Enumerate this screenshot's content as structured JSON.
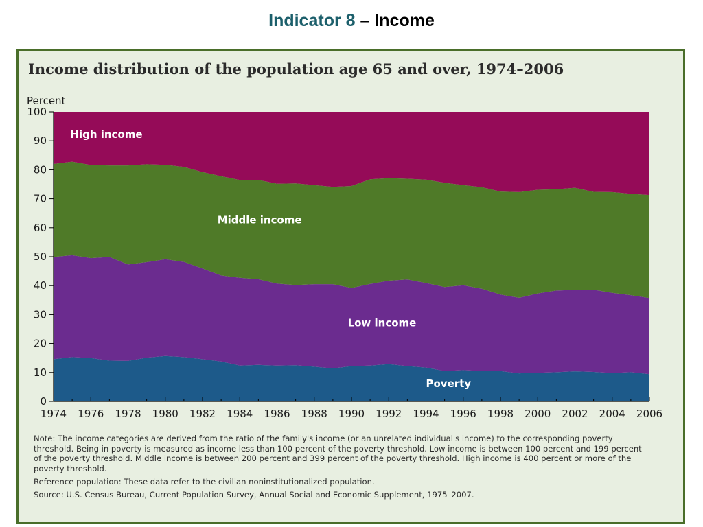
{
  "slide": {
    "title_accent": "Indicator 8",
    "title_rest": " – Income"
  },
  "chart_data": {
    "type": "area",
    "stacked": true,
    "title": "Income distribution of the population age 65 and over, 1974–2006",
    "ylabel": "Percent",
    "xlabel": "",
    "ylim": [
      0,
      100
    ],
    "xlim": [
      1974,
      2006
    ],
    "yticks": [
      0,
      10,
      20,
      30,
      40,
      50,
      60,
      70,
      80,
      90,
      100
    ],
    "xticks": [
      1974,
      1976,
      1978,
      1980,
      1982,
      1984,
      1986,
      1988,
      1990,
      1992,
      1994,
      1996,
      1998,
      2000,
      2002,
      2004,
      2006
    ],
    "x": [
      1974,
      1975,
      1976,
      1977,
      1978,
      1979,
      1980,
      1981,
      1982,
      1983,
      1984,
      1985,
      1986,
      1987,
      1988,
      1989,
      1990,
      1991,
      1992,
      1993,
      1994,
      1995,
      1996,
      1997,
      1998,
      1999,
      2000,
      2001,
      2002,
      2003,
      2004,
      2005,
      2006
    ],
    "series": [
      {
        "name": "Poverty",
        "color": "#1d5a8a",
        "values": [
          14.6,
          15.3,
          15.0,
          14.1,
          14.0,
          15.1,
          15.7,
          15.3,
          14.6,
          13.8,
          12.4,
          12.6,
          12.4,
          12.5,
          12.0,
          11.4,
          12.2,
          12.4,
          12.9,
          12.2,
          11.7,
          10.5,
          10.8,
          10.5,
          10.5,
          9.7,
          9.9,
          10.1,
          10.4,
          10.2,
          9.8,
          10.1,
          9.4
        ]
      },
      {
        "name": "Low income",
        "color": "#6b2c8f",
        "values": [
          35.3,
          35.2,
          34.5,
          35.8,
          33.3,
          33.0,
          33.4,
          32.9,
          31.3,
          29.7,
          30.3,
          29.6,
          28.3,
          27.7,
          28.5,
          29.1,
          27.0,
          28.2,
          28.8,
          29.9,
          29.2,
          29.0,
          29.3,
          28.4,
          26.4,
          26.1,
          27.4,
          28.2,
          28.1,
          28.4,
          27.7,
          26.6,
          26.3
        ]
      },
      {
        "name": "Middle income",
        "color": "#4f7a28",
        "values": [
          32.1,
          32.3,
          32.1,
          31.6,
          34.2,
          33.8,
          32.6,
          32.8,
          33.3,
          34.3,
          33.8,
          34.3,
          34.5,
          35.1,
          34.2,
          33.6,
          35.2,
          36.1,
          35.4,
          34.8,
          35.7,
          36.0,
          34.6,
          35.1,
          35.6,
          36.5,
          35.8,
          35.0,
          35.3,
          33.8,
          34.8,
          35.0,
          35.6
        ]
      },
      {
        "name": "High income",
        "color": "#950b58",
        "values": [
          18.0,
          17.2,
          18.4,
          18.5,
          18.5,
          18.1,
          18.3,
          19.0,
          20.8,
          22.2,
          23.5,
          23.5,
          24.8,
          24.7,
          25.3,
          25.9,
          25.6,
          23.3,
          22.9,
          23.1,
          23.4,
          24.5,
          25.3,
          26.0,
          27.5,
          27.7,
          26.9,
          26.7,
          26.2,
          27.6,
          27.7,
          28.3,
          28.7
        ]
      }
    ],
    "legend": "in-plot labels"
  },
  "notes": {
    "note": "Note:  The income categories are derived from the ratio of the family's income (or an unrelated individual's income) to the corresponding poverty threshold. Being in poverty is measured as income less than 100 percent of the poverty threshold.  Low income is between 100 percent and 199 percent of the poverty threshold. Middle income is between 200 percent and 399 percent of the poverty threshold.  High income is 400 percent or more of the poverty threshold.",
    "reference": "Reference population: These data refer to the civilian noninstitutionalized population.",
    "source": "Source:  U.S. Census Bureau, Current Population Survey, Annual Social and Economic Supplement, 1975–2007."
  }
}
